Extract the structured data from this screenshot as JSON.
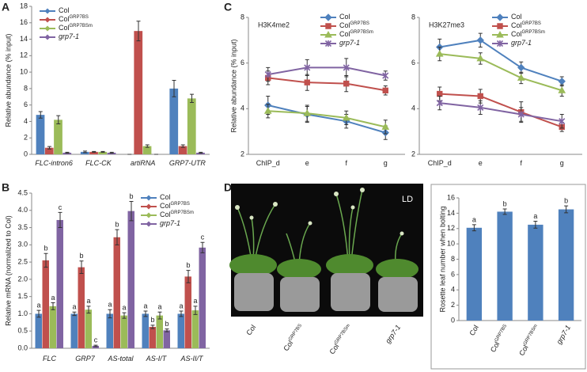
{
  "panels": [
    "A",
    "B",
    "C",
    "D"
  ],
  "photo": {
    "label": "LD",
    "genotypes": [
      {
        "name": "Col"
      },
      {
        "name": "Col",
        "sup": "GRP7BS"
      },
      {
        "name": "Col",
        "sup": "GRP7BSm"
      },
      {
        "name": "grp7-1"
      }
    ]
  },
  "chart_data": [
    {
      "type": "bar",
      "y_label": "Relative abundance (% input)",
      "categories": [
        "FLC-intron6",
        "FLC-CK",
        "artiRNA",
        "GRP7-UTR"
      ],
      "ylim": [
        0,
        18
      ],
      "yticks": [
        0,
        2,
        4,
        6,
        8,
        10,
        12,
        14,
        16,
        18
      ],
      "series": [
        {
          "name": "Col",
          "color": "#4f81bd",
          "marker": "diamond",
          "values": [
            4.8,
            0.3,
            0,
            8.0
          ],
          "errors": [
            0.4,
            0.1,
            0,
            1.0
          ]
        },
        {
          "name": "Col",
          "name_sup": "GRP7BS",
          "color": "#c0504d",
          "marker": "square",
          "values": [
            0.8,
            0.3,
            15.0,
            1.0
          ],
          "errors": [
            0.15,
            0.05,
            1.2,
            0.15
          ]
        },
        {
          "name": "Col",
          "name_sup": "GRP7BSm",
          "color": "#9bbb59",
          "marker": "triangle",
          "values": [
            4.2,
            0.3,
            1.0,
            6.8
          ],
          "errors": [
            0.5,
            0.05,
            0.15,
            0.5
          ]
        },
        {
          "name": "grp7-1",
          "color": "#8064a2",
          "marker": "x",
          "italic": true,
          "values": [
            0.2,
            0.2,
            0,
            0.2
          ],
          "errors": [
            0.05,
            0.05,
            0,
            0.05
          ]
        }
      ]
    },
    {
      "type": "bar",
      "y_label": "Relative mRNA (normalized to Col)",
      "categories": [
        "FLC",
        "GRP7",
        "AS-total",
        "AS-I/T",
        "AS-II/T"
      ],
      "ylim": [
        0,
        4.5
      ],
      "yticks": [
        {
          "value": 0,
          "label": "0.0"
        },
        0.5,
        {
          "value": 1,
          "label": "1.0"
        },
        1.5,
        {
          "value": 2,
          "label": "2.0"
        },
        2.5,
        {
          "value": 3,
          "label": "3.0"
        },
        3.5,
        {
          "value": 4,
          "label": "4.0"
        },
        4.5
      ],
      "series": [
        {
          "name": "Col",
          "color": "#4f81bd",
          "marker": "diamond",
          "values": [
            1.0,
            1.0,
            1.0,
            1.0,
            1.0
          ],
          "errors": [
            0.1,
            0.05,
            0.12,
            0.08,
            0.08
          ],
          "letters": [
            "a",
            "a",
            "a",
            "a",
            "a"
          ]
        },
        {
          "name": "Col",
          "name_sup": "GRP7BS",
          "color": "#c0504d",
          "marker": "square",
          "values": [
            2.55,
            2.35,
            3.22,
            0.62,
            2.08
          ],
          "errors": [
            0.2,
            0.18,
            0.22,
            0.05,
            0.18
          ],
          "letters": [
            "b",
            "b",
            "b",
            "b",
            "b"
          ]
        },
        {
          "name": "Col",
          "name_sup": "GRP7BSm",
          "color": "#9bbb59",
          "marker": "triangle",
          "values": [
            1.22,
            1.12,
            0.95,
            0.95,
            1.1
          ],
          "errors": [
            0.1,
            0.1,
            0.08,
            0.1,
            0.12
          ],
          "letters": [
            "a",
            "a",
            "a",
            "a",
            "a"
          ]
        },
        {
          "name": "grp7-1",
          "color": "#8064a2",
          "marker": "x",
          "italic": true,
          "values": [
            3.72,
            0.07,
            3.98,
            0.52,
            2.92
          ],
          "errors": [
            0.22,
            0.02,
            0.28,
            0.04,
            0.15
          ],
          "letters": [
            "c",
            "c",
            "b",
            "b",
            "c"
          ]
        }
      ]
    },
    {
      "type": "line",
      "title": "H3K4me2",
      "y_label": "Relative abundance (% input)",
      "categories": [
        "ChIP_d",
        "e",
        "f",
        "g"
      ],
      "ylim": [
        2,
        8
      ],
      "yticks": [
        2,
        4,
        6,
        8
      ],
      "series": [
        {
          "name": "Col",
          "color": "#4f81bd",
          "marker": "diamond",
          "values": [
            4.15,
            3.75,
            3.45,
            2.95
          ],
          "errors": [
            0.4,
            0.35,
            0.3,
            0.3
          ]
        },
        {
          "name": "Col",
          "name_sup": "GRP7BS",
          "color": "#c0504d",
          "marker": "square",
          "values": [
            5.35,
            5.15,
            5.1,
            4.8
          ],
          "errors": [
            0.3,
            0.35,
            0.35,
            0.2
          ]
        },
        {
          "name": "Col",
          "name_sup": "GRP7BSm",
          "color": "#9bbb59",
          "marker": "triangle",
          "values": [
            3.9,
            3.8,
            3.6,
            3.2
          ],
          "errors": [
            0.3,
            0.35,
            0.3,
            0.3
          ]
        },
        {
          "name": "grp7-1",
          "color": "#8064a2",
          "marker": "x",
          "italic": true,
          "values": [
            5.5,
            5.8,
            5.8,
            5.45
          ],
          "errors": [
            0.3,
            0.35,
            0.4,
            0.2
          ]
        }
      ]
    },
    {
      "type": "line",
      "title": "H3K27me3",
      "categories": [
        "ChIP_d",
        "e",
        "f",
        "g"
      ],
      "ylim": [
        2,
        8
      ],
      "yticks": [
        2,
        4,
        6,
        8
      ],
      "series": [
        {
          "name": "Col",
          "color": "#4f81bd",
          "marker": "diamond",
          "values": [
            6.7,
            7.0,
            5.8,
            5.2
          ],
          "errors": [
            0.35,
            0.3,
            0.25,
            0.2
          ]
        },
        {
          "name": "Col",
          "name_sup": "GRP7BS",
          "color": "#c0504d",
          "marker": "square",
          "values": [
            4.65,
            4.55,
            3.85,
            3.2
          ],
          "errors": [
            0.3,
            0.3,
            0.45,
            0.2
          ]
        },
        {
          "name": "Col",
          "name_sup": "GRP7BSm",
          "color": "#9bbb59",
          "marker": "triangle",
          "values": [
            6.4,
            6.2,
            5.35,
            4.8
          ],
          "errors": [
            0.3,
            0.25,
            0.25,
            0.25
          ]
        },
        {
          "name": "grp7-1",
          "color": "#8064a2",
          "marker": "x",
          "italic": true,
          "values": [
            4.25,
            4.05,
            3.75,
            3.45
          ],
          "errors": [
            0.3,
            0.3,
            0.3,
            0.3
          ]
        }
      ]
    },
    {
      "type": "bar",
      "y_label": "Rosette leaf number when bolting",
      "categories": [
        "Col",
        "Col",
        "Col",
        "grp7-1"
      ],
      "category_superscripts": [
        null,
        "GRP7BS",
        "GRP7BSm",
        null
      ],
      "color": "#4f81bd",
      "values": [
        12.1,
        14.2,
        12.5,
        14.5
      ],
      "errors": [
        0.4,
        0.35,
        0.45,
        0.45
      ],
      "letters": [
        "a",
        "b",
        "a",
        "b"
      ],
      "ylim": [
        0,
        16
      ],
      "yticks": [
        0,
        2,
        4,
        6,
        8,
        10,
        12,
        14,
        16
      ]
    }
  ]
}
